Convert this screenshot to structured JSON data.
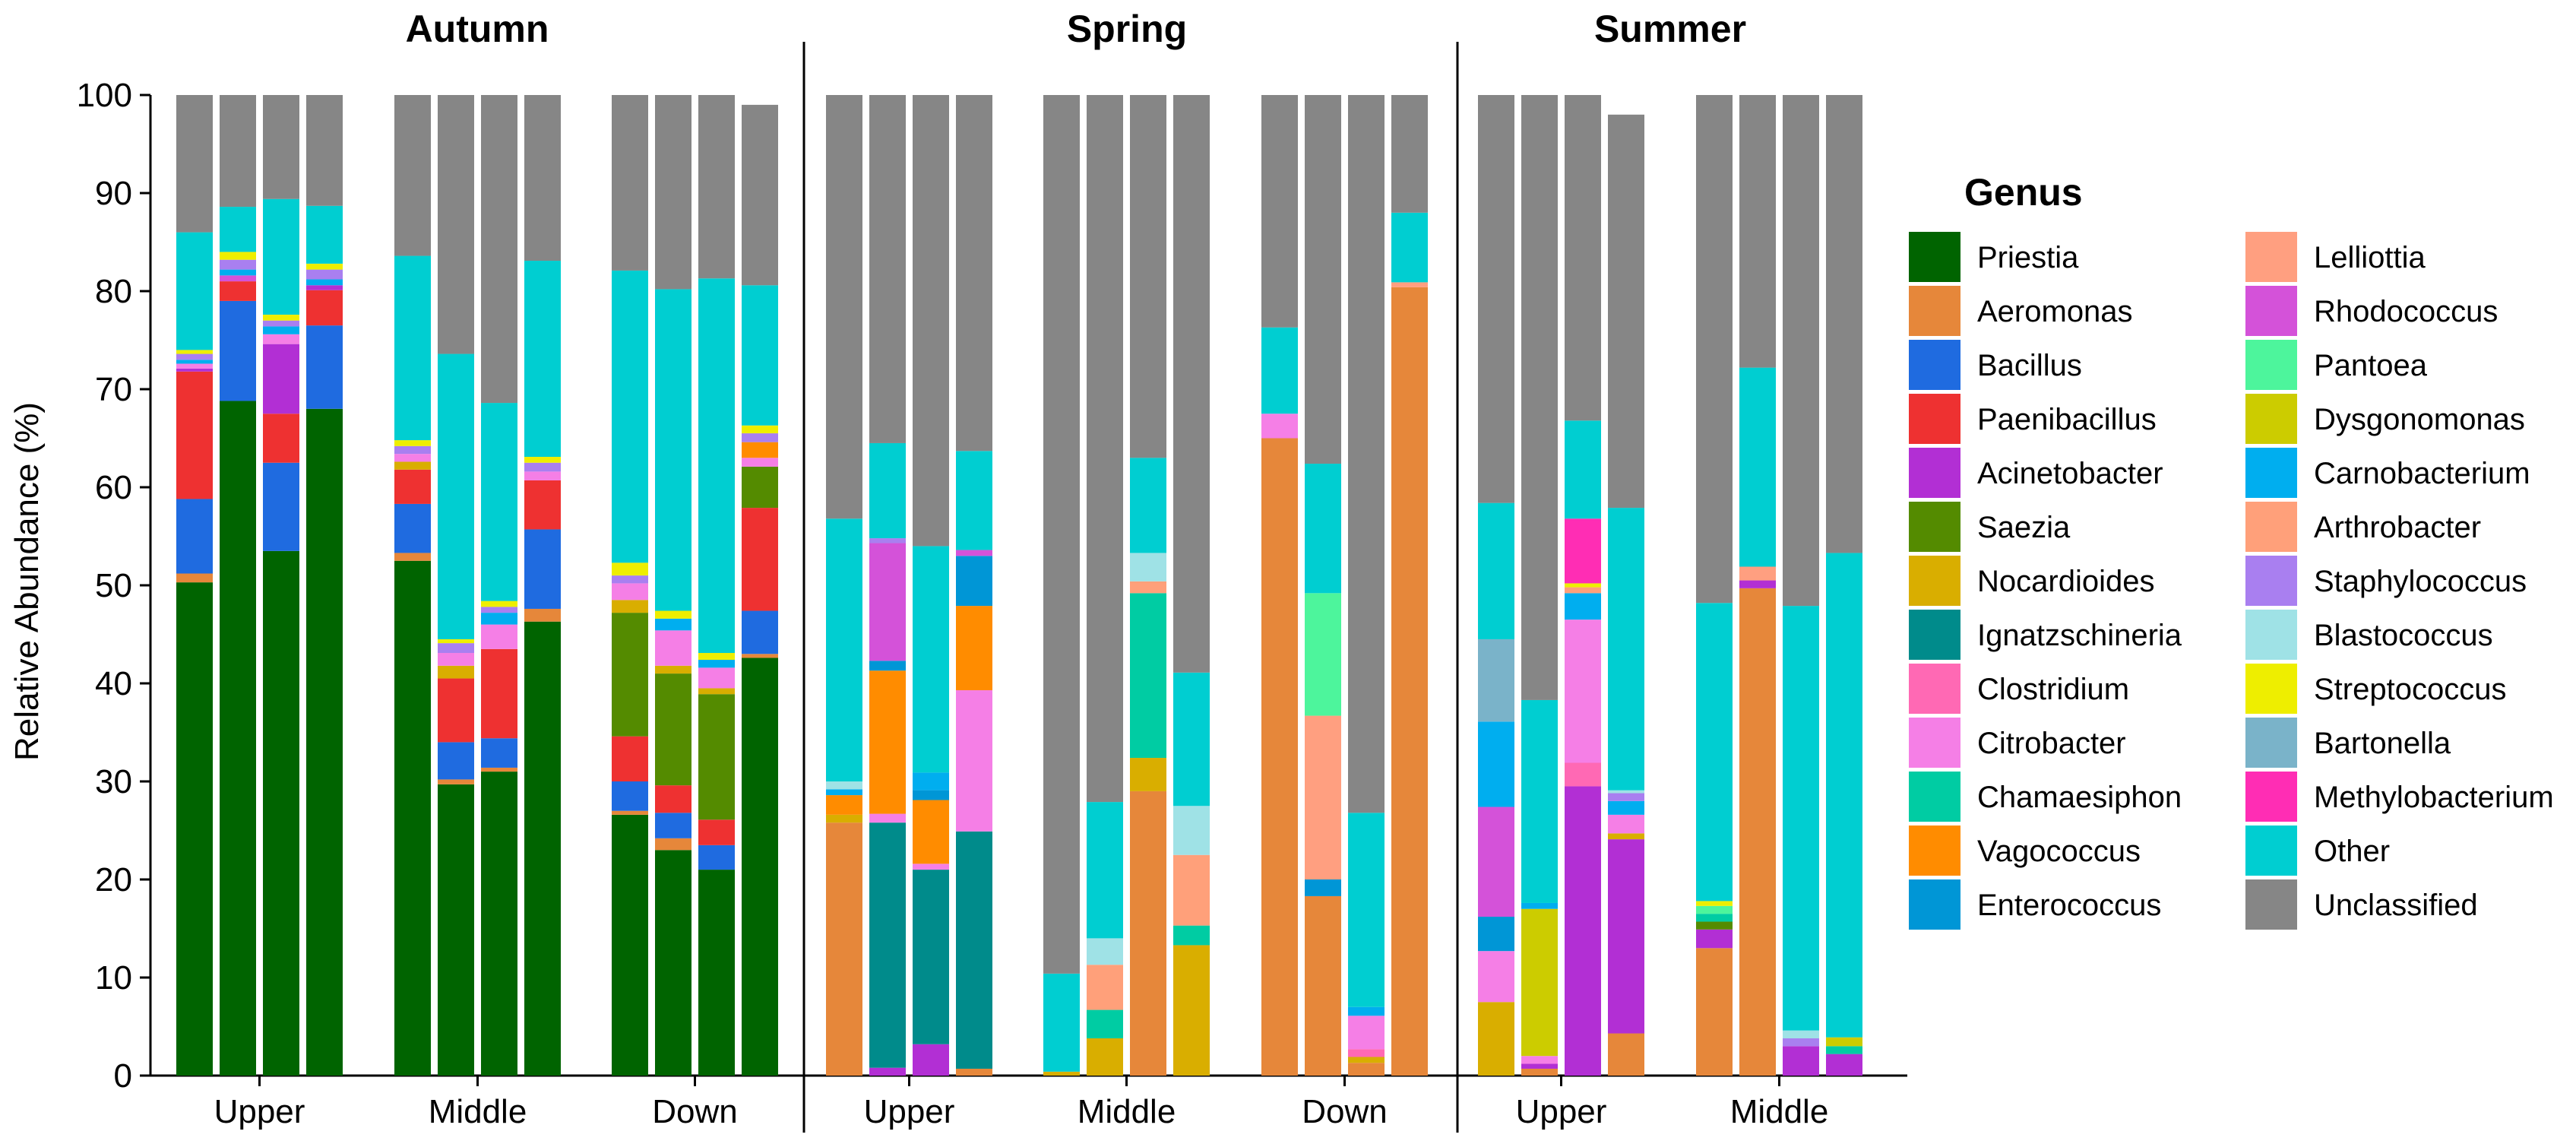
{
  "chart_data": {
    "type": "bar",
    "stacked": true,
    "ylabel": "Relative Abundance (%)",
    "ylim": [
      0,
      100
    ],
    "yticks": [
      0,
      10,
      20,
      30,
      40,
      50,
      60,
      70,
      80,
      90,
      100
    ],
    "legend": {
      "title": "Genus",
      "position": "right"
    },
    "genera": [
      {
        "name": "Priestia",
        "color": "#006400"
      },
      {
        "name": "Aeromonas",
        "color": "#E6873A"
      },
      {
        "name": "Bacillus",
        "color": "#1F6BE0"
      },
      {
        "name": "Paenibacillus",
        "color": "#EE3131"
      },
      {
        "name": "Acinetobacter",
        "color": "#B22FD4"
      },
      {
        "name": "Saezia",
        "color": "#548B00"
      },
      {
        "name": "Nocardioides",
        "color": "#D9AE00"
      },
      {
        "name": "Ignatzschineria",
        "color": "#008B8B"
      },
      {
        "name": "Clostridium",
        "color": "#FF69B4"
      },
      {
        "name": "Citrobacter",
        "color": "#F57FE6"
      },
      {
        "name": "Chamaesiphon",
        "color": "#00CCA3"
      },
      {
        "name": "Vagococcus",
        "color": "#FF8C00"
      },
      {
        "name": "Enterococcus",
        "color": "#0096D6"
      },
      {
        "name": "Lelliottia",
        "color": "#FF9F80"
      },
      {
        "name": "Rhodococcus",
        "color": "#D452D9"
      },
      {
        "name": "Pantoea",
        "color": "#4DF59C"
      },
      {
        "name": "Dysgonomonas",
        "color": "#CCCC00"
      },
      {
        "name": "Carnobacterium",
        "color": "#00AEEF"
      },
      {
        "name": "Arthrobacter",
        "color": "#FFA07A"
      },
      {
        "name": "Staphylococcus",
        "color": "#A97FF0"
      },
      {
        "name": "Blastococcus",
        "color": "#9FE2E6"
      },
      {
        "name": "Streptococcus",
        "color": "#EEEE00"
      },
      {
        "name": "Bartonella",
        "color": "#7AB3C9"
      },
      {
        "name": "Methylobacterium",
        "color": "#FF2DB4"
      },
      {
        "name": "Other",
        "color": "#00CED1"
      },
      {
        "name": "Unclassified",
        "color": "#868686"
      }
    ],
    "panels": [
      {
        "title": "Autumn",
        "groups": [
          {
            "label": "Upper",
            "bars": [
              {
                "Priestia": 50.3,
                "Aeromonas": 0.9,
                "Bacillus": 7.6,
                "Paenibacillus": 13.0,
                "Acinetobacter": 0.3,
                "Citrobacter": 0.5,
                "Staphylococcus": 0.6,
                "Carnobacterium": 0.4,
                "Streptococcus": 0.4,
                "Other": 12.0,
                "Unclassified": 14.0
              },
              {
                "Priestia": 68.8,
                "Bacillus": 10.2,
                "Paenibacillus": 2.0,
                "Carnobacterium": 0.6,
                "Rhodococcus": 0.6,
                "Staphylococcus": 1.0,
                "Streptococcus": 0.8,
                "Other": 4.6,
                "Unclassified": 11.4
              },
              {
                "Priestia": 53.5,
                "Bacillus": 9.0,
                "Paenibacillus": 5.0,
                "Acinetobacter": 7.1,
                "Carnobacterium": 0.8,
                "Citrobacter": 1.0,
                "Staphylococcus": 0.6,
                "Streptococcus": 0.6,
                "Other": 11.8,
                "Unclassified": 10.6
              },
              {
                "Priestia": 68.0,
                "Bacillus": 8.5,
                "Paenibacillus": 3.6,
                "Acinetobacter": 0.5,
                "Carnobacterium": 0.6,
                "Staphylococcus": 1.0,
                "Streptococcus": 0.6,
                "Other": 5.9,
                "Unclassified": 11.3
              }
            ]
          },
          {
            "label": "Middle",
            "bars": [
              {
                "Priestia": 52.5,
                "Bacillus": 5.0,
                "Paenibacillus": 3.5,
                "Aeromonas": 0.8,
                "Nocardioides": 0.8,
                "Citrobacter": 0.8,
                "Staphylococcus": 0.8,
                "Streptococcus": 0.6,
                "Other": 18.8,
                "Unclassified": 16.4
              },
              {
                "Priestia": 29.7,
                "Aeromonas": 0.5,
                "Bacillus": 3.8,
                "Paenibacillus": 6.5,
                "Nocardioides": 1.3,
                "Citrobacter": 1.3,
                "Staphylococcus": 1.0,
                "Streptococcus": 0.4,
                "Other": 29.1,
                "Unclassified": 26.4
              },
              {
                "Priestia": 31.0,
                "Aeromonas": 0.4,
                "Bacillus": 3.0,
                "Paenibacillus": 9.1,
                "Citrobacter": 2.5,
                "Carnobacterium": 1.2,
                "Staphylococcus": 0.6,
                "Streptococcus": 0.6,
                "Other": 20.2,
                "Unclassified": 31.4
              },
              {
                "Priestia": 46.3,
                "Aeromonas": 1.3,
                "Bacillus": 8.1,
                "Paenibacillus": 5.0,
                "Citrobacter": 0.9,
                "Staphylococcus": 0.9,
                "Streptococcus": 0.6,
                "Other": 20.0,
                "Unclassified": 16.9
              }
            ]
          },
          {
            "label": "Down",
            "bars": [
              {
                "Priestia": 26.6,
                "Aeromonas": 0.4,
                "Bacillus": 3.0,
                "Paenibacillus": 4.6,
                "Saezia": 12.6,
                "Nocardioides": 1.3,
                "Citrobacter": 1.7,
                "Streptococcus": 1.3,
                "Staphylococcus": 0.8,
                "Other": 29.8,
                "Unclassified": 17.9
              },
              {
                "Priestia": 23.0,
                "Aeromonas": 1.2,
                "Bacillus": 2.6,
                "Paenibacillus": 2.8,
                "Saezia": 11.4,
                "Citrobacter": 3.6,
                "Carnobacterium": 1.2,
                "Nocardioides": 0.8,
                "Streptococcus": 0.8,
                "Other": 32.8,
                "Unclassified": 19.8
              },
              {
                "Priestia": 21.0,
                "Bacillus": 2.5,
                "Paenibacillus": 2.6,
                "Saezia": 12.8,
                "Citrobacter": 2.1,
                "Carnobacterium": 0.8,
                "Nocardioides": 0.6,
                "Streptococcus": 0.7,
                "Other": 38.2,
                "Unclassified": 18.7
              },
              {
                "Priestia": 42.6,
                "Aeromonas": 0.4,
                "Bacillus": 4.4,
                "Paenibacillus": 10.5,
                "Saezia": 4.2,
                "Citrobacter": 0.9,
                "Vagococcus": 1.6,
                "Staphylococcus": 0.9,
                "Streptococcus": 0.8,
                "Other": 14.3,
                "Unclassified": 18.4
              }
            ]
          }
        ]
      },
      {
        "title": "Spring",
        "groups": [
          {
            "label": "Upper",
            "bars": [
              {
                "Aeromonas": 25.8,
                "Nocardioides": 0.8,
                "Vagococcus": 2.0,
                "Carnobacterium": 0.6,
                "Blastococcus": 0.8,
                "Other": 26.8,
                "Unclassified": 43.2
              },
              {
                "Acinetobacter": 0.8,
                "Ignatzschineria": 25.0,
                "Citrobacter": 0.9,
                "Vagococcus": 14.6,
                "Enterococcus": 1.0,
                "Rhodococcus": 12.0,
                "Staphylococcus": 0.5,
                "Other": 9.7,
                "Unclassified": 35.5
              },
              {
                "Acinetobacter": 3.2,
                "Ignatzschineria": 17.8,
                "Citrobacter": 0.6,
                "Vagococcus": 6.5,
                "Enterococcus": 1.0,
                "Carnobacterium": 1.8,
                "Other": 23.1,
                "Unclassified": 46.0
              },
              {
                "Aeromonas": 0.7,
                "Ignatzschineria": 24.2,
                "Citrobacter": 14.4,
                "Vagococcus": 8.6,
                "Enterococcus": 5.1,
                "Rhodococcus": 0.6,
                "Other": 10.1,
                "Unclassified": 36.3
              }
            ]
          },
          {
            "label": "Middle",
            "bars": [
              {
                "Nocardioides": 0.4,
                "Other": 10.0,
                "Unclassified": 89.6
              },
              {
                "Nocardioides": 3.8,
                "Chamaesiphon": 2.9,
                "Arthrobacter": 4.6,
                "Blastococcus": 2.7,
                "Other": 13.9,
                "Unclassified": 72.1
              },
              {
                "Aeromonas": 29.0,
                "Nocardioides": 3.4,
                "Chamaesiphon": 16.8,
                "Arthrobacter": 1.2,
                "Blastococcus": 2.9,
                "Other": 9.7,
                "Unclassified": 37.0
              },
              {
                "Nocardioides": 13.3,
                "Chamaesiphon": 2.0,
                "Arthrobacter": 7.2,
                "Blastococcus": 5.0,
                "Other": 13.6,
                "Unclassified": 58.9
              }
            ]
          },
          {
            "label": "Down",
            "bars": [
              {
                "Aeromonas": 65.0,
                "Citrobacter": 2.5,
                "Other": 8.8,
                "Unclassified": 23.7
              },
              {
                "Aeromonas": 18.3,
                "Enterococcus": 1.7,
                "Lelliottia": 16.7,
                "Pantoea": 12.5,
                "Other": 13.2,
                "Unclassified": 37.6
              },
              {
                "Aeromonas": 1.3,
                "Clostridium": 0.8,
                "Citrobacter": 3.4,
                "Nocardioides": 0.6,
                "Carnobacterium": 0.9,
                "Other": 19.8,
                "Unclassified": 73.2
              },
              {
                "Aeromonas": 80.4,
                "Lelliottia": 0.5,
                "Other": 7.1,
                "Unclassified": 12.0
              }
            ]
          }
        ]
      },
      {
        "title": "Summer",
        "groups": [
          {
            "label": "Upper",
            "bars": [
              {
                "Nocardioides": 7.5,
                "Citrobacter": 5.2,
                "Enterococcus": 3.5,
                "Rhodococcus": 11.2,
                "Carnobacterium": 8.7,
                "Bartonella": 8.4,
                "Other": 13.9,
                "Unclassified": 41.6
              },
              {
                "Aeromonas": 0.7,
                "Acinetobacter": 0.5,
                "Citrobacter": 0.8,
                "Carnobacterium": 0.6,
                "Dysgonomonas": 15.0,
                "Other": 20.7,
                "Unclassified": 61.7
              },
              {
                "Acinetobacter": 29.5,
                "Carnobacterium": 2.7,
                "Clostridium": 2.4,
                "Citrobacter": 14.6,
                "Streptococcus": 0.4,
                "Arthrobacter": 0.6,
                "Methylobacterium": 6.6,
                "Other": 10.0,
                "Unclassified": 33.2
              },
              {
                "Aeromonas": 4.3,
                "Acinetobacter": 19.8,
                "Nocardioides": 0.6,
                "Citrobacter": 1.9,
                "Carnobacterium": 1.4,
                "Staphylococcus": 0.8,
                "Blastococcus": 0.3,
                "Other": 28.8,
                "Unclassified": 40.1
              }
            ]
          },
          {
            "label": "Middle",
            "bars": [
              {
                "Aeromonas": 13.0,
                "Acinetobacter": 1.9,
                "Saezia": 0.8,
                "Chamaesiphon": 0.8,
                "Pantoea": 0.8,
                "Streptococcus": 0.5,
                "Other": 30.4,
                "Unclassified": 51.8
              },
              {
                "Aeromonas": 49.7,
                "Acinetobacter": 0.8,
                "Lelliottia": 1.4,
                "Other": 20.3,
                "Unclassified": 27.8
              },
              {
                "Acinetobacter": 3.0,
                "Staphylococcus": 0.8,
                "Blastococcus": 0.8,
                "Other": 43.3,
                "Unclassified": 52.1
              },
              {
                "Acinetobacter": 2.2,
                "Chamaesiphon": 0.8,
                "Dysgonomonas": 0.9,
                "Other": 49.4,
                "Unclassified": 46.7
              }
            ]
          }
        ]
      }
    ]
  }
}
